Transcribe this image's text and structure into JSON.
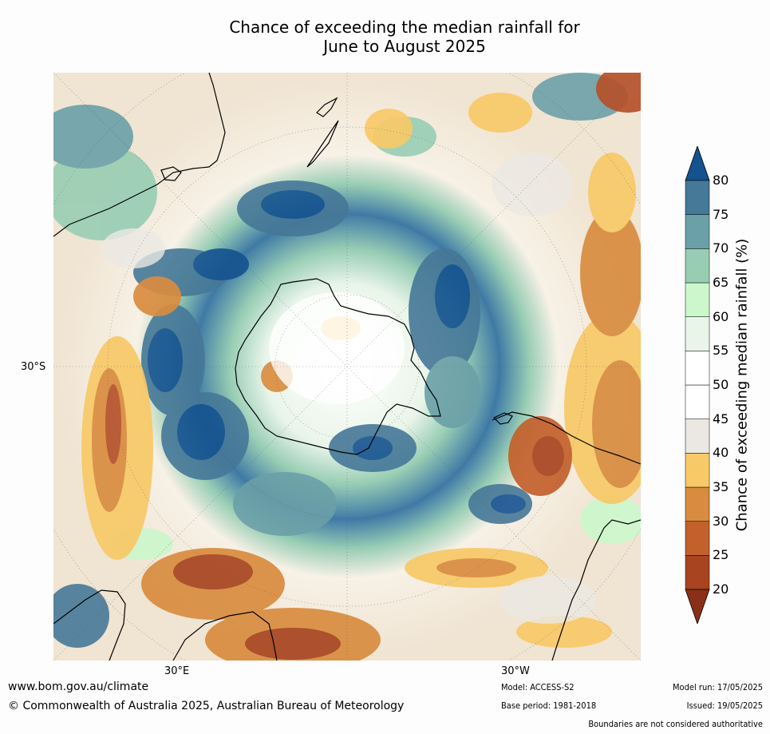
{
  "title_line1": "Chance of exceeding the median rainfall for",
  "title_line2": "June to August 2025",
  "axis": {
    "lat_30s": "30°S",
    "lon_30e": "30°E",
    "lon_30w": "30°W"
  },
  "colorbar": {
    "label": "Chance of exceeding median rainfall (%)",
    "ticks": [
      "20",
      "25",
      "30",
      "35",
      "40",
      "45",
      "50",
      "55",
      "60",
      "65",
      "70",
      "75",
      "80"
    ],
    "band_colors": [
      "#a8441f",
      "#c4602c",
      "#d98c3f",
      "#f8c967",
      "#ebe8e3",
      "#ffffff",
      "#ffffff",
      "#eaf5ea",
      "#ccf7cc",
      "#98cdb4",
      "#6ba0a8",
      "#467898"
    ],
    "under_color": "#8a3018",
    "over_color": "#145290"
  },
  "map": {
    "ocean_color": "#ffffff",
    "wet_color": "#1c5a96",
    "dry_color": "#b5512a",
    "coastline_color": "#000000"
  },
  "footer": {
    "url": "www.bom.gov.au/climate",
    "copyright": "© Commonwealth of Australia 2025, Australian Bureau of Meteorology",
    "model": "Model: ACCESS-S2",
    "base_period": "Base period: 1981-2018",
    "model_run": "Model run: 17/05/2025",
    "issued": "Issued: 19/05/2025",
    "disclaimer": "Boundaries are not considered authoritative"
  }
}
